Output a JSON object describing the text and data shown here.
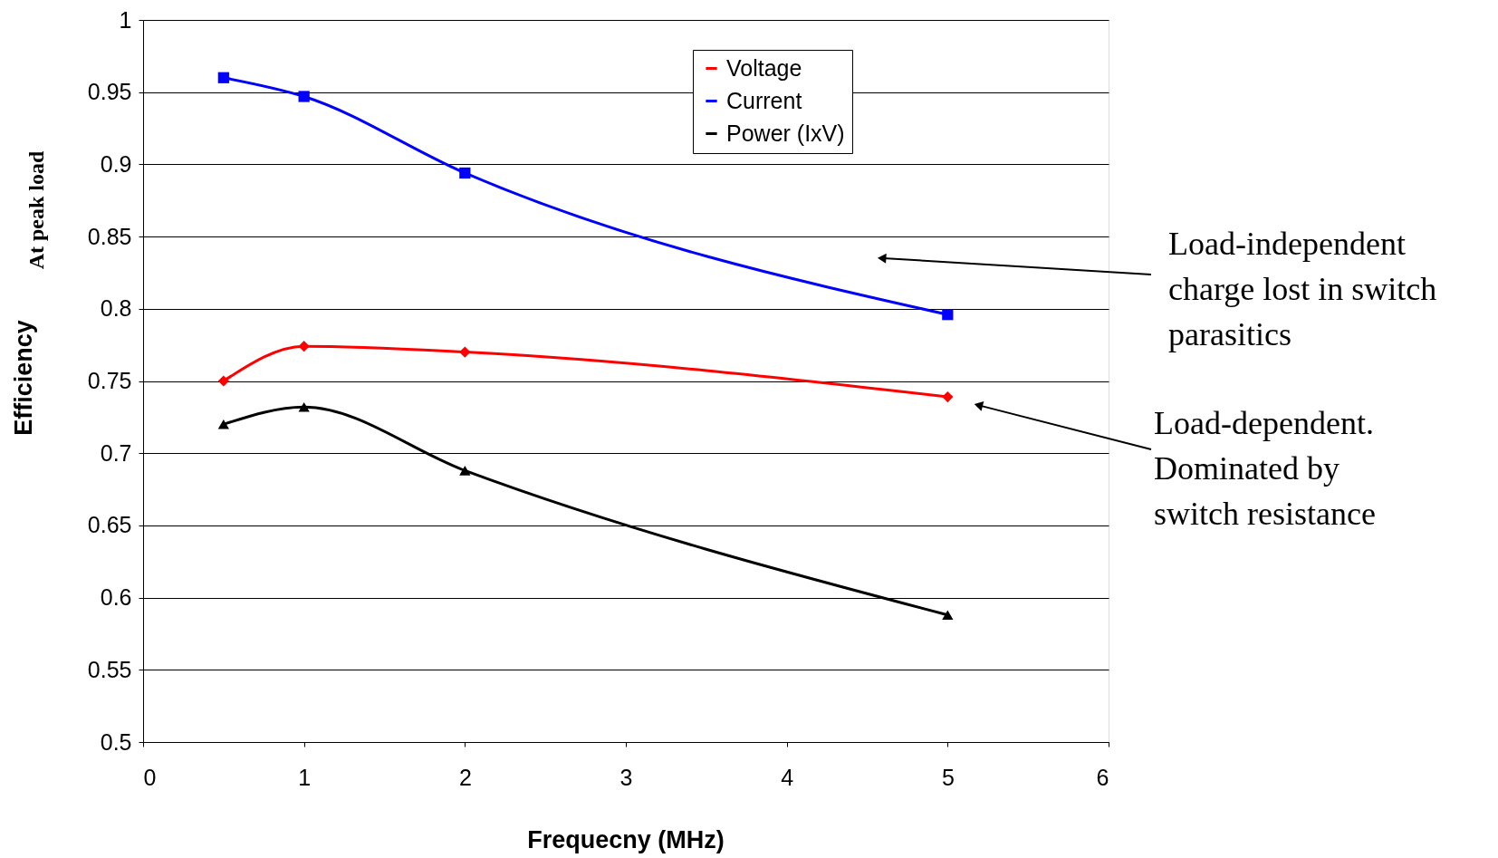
{
  "chart_data": {
    "type": "line",
    "xlabel": "Frequecny (MHz)",
    "ylabel": "Efficiency",
    "x": [
      0.5,
      1,
      2,
      5
    ],
    "series": [
      {
        "name": "Voltage",
        "color": "#ff0000",
        "marker": "diamond",
        "values": [
          0.75,
          0.774,
          0.77,
          0.739
        ]
      },
      {
        "name": "Current",
        "color": "#0000ff",
        "marker": "square",
        "values": [
          0.96,
          0.947,
          0.894,
          0.796
        ]
      },
      {
        "name": "Power (IxV)",
        "color": "#000000",
        "marker": "triangle",
        "values": [
          0.72,
          0.732,
          0.688,
          0.588
        ]
      }
    ],
    "xlim": [
      0,
      6
    ],
    "xticks": [
      0,
      1,
      2,
      3,
      4,
      5,
      6
    ],
    "ylim": [
      0.5,
      1
    ],
    "yticks": [
      0.5,
      0.55,
      0.6,
      0.65,
      0.7,
      0.75,
      0.8,
      0.85,
      0.9,
      0.95,
      1
    ],
    "grid": "y",
    "legend": "top",
    "line_style": "solid",
    "annotations": [
      "At peak load",
      {
        "text": "Load-independent\ncharge lost in switch\nparasitics",
        "x": 4.6,
        "y": 0.835
      },
      {
        "text": "Load-dependent.\nDominated by\nswitch resistance",
        "x": 5.2,
        "y": 0.733
      }
    ]
  }
}
